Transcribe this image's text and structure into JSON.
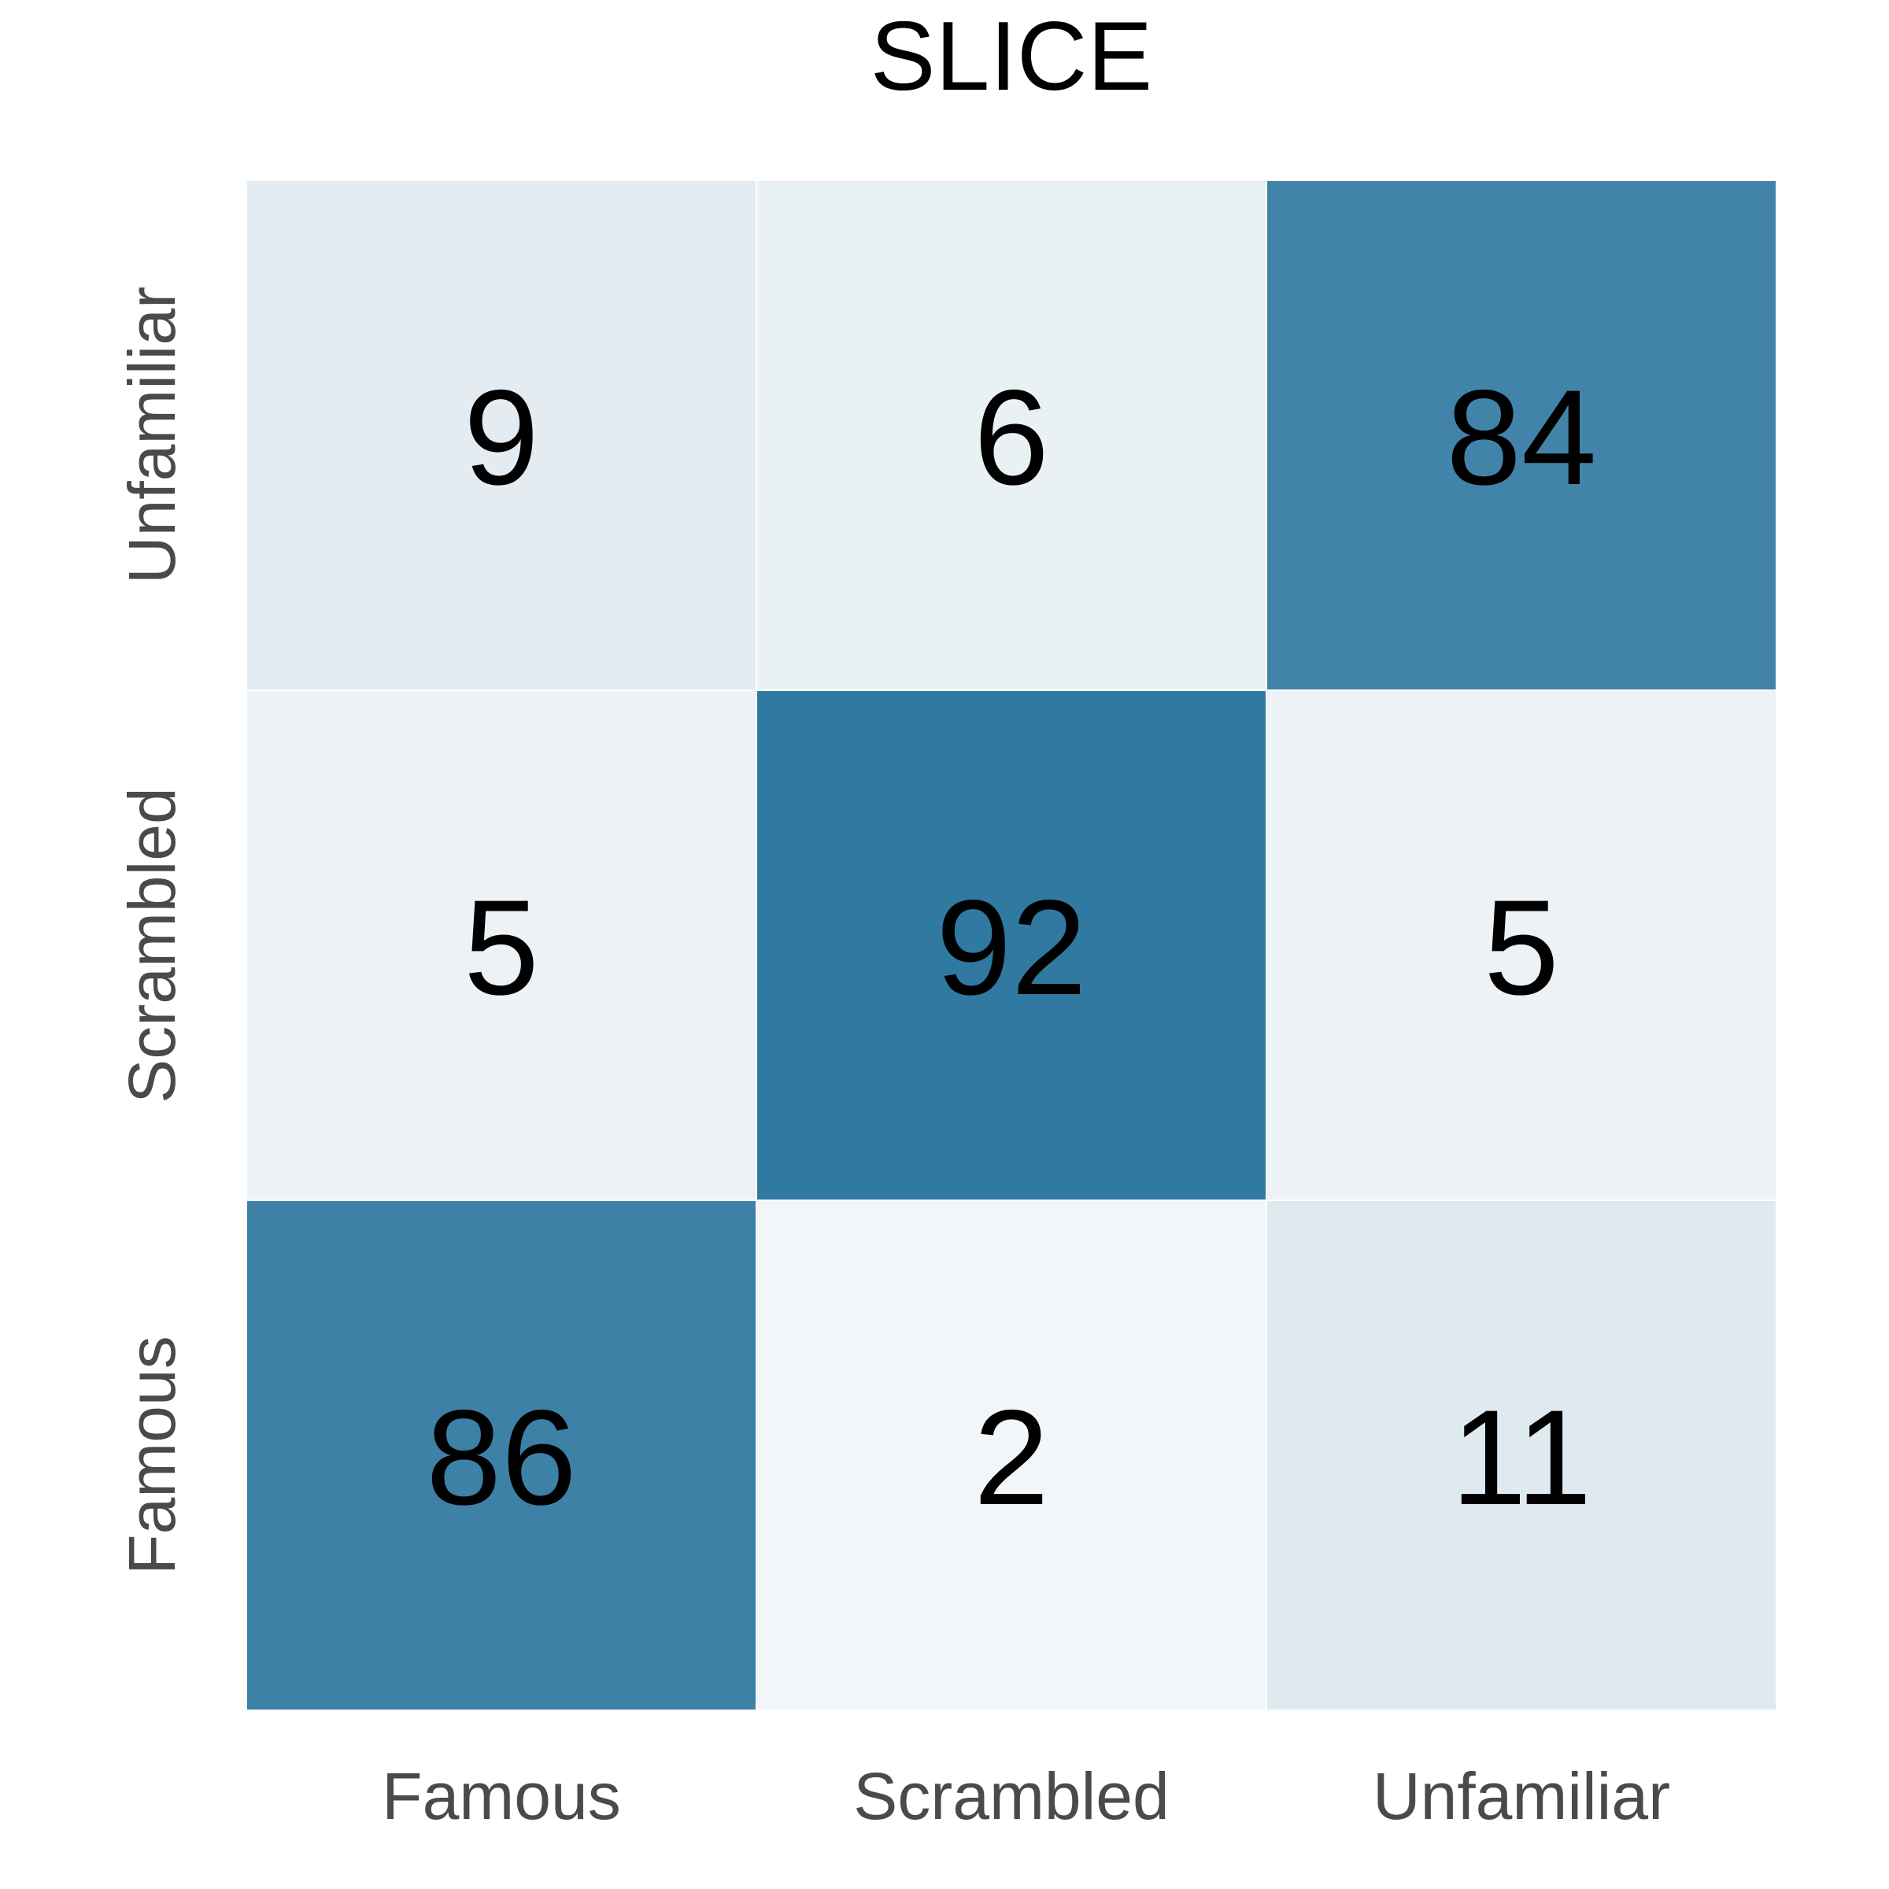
{
  "chart_data": {
    "type": "heatmap",
    "title": "SLICE",
    "xlabel": "",
    "ylabel": "",
    "x_categories": [
      "Famous",
      "Scrambled",
      "Unfamiliar"
    ],
    "y_categories": [
      "Famous",
      "Scrambled",
      "Unfamiliar"
    ],
    "y_order": "bottom-to-top",
    "values": [
      [
        86,
        2,
        11
      ],
      [
        5,
        92,
        5
      ],
      [
        9,
        6,
        84
      ]
    ],
    "value_range": [
      0,
      100
    ],
    "colormap": {
      "low": "#f7f9fb",
      "high": "#1f6e99"
    },
    "annotation_color": "#000000",
    "tick_label_color": "#4a4a4a",
    "colorbar": false
  }
}
